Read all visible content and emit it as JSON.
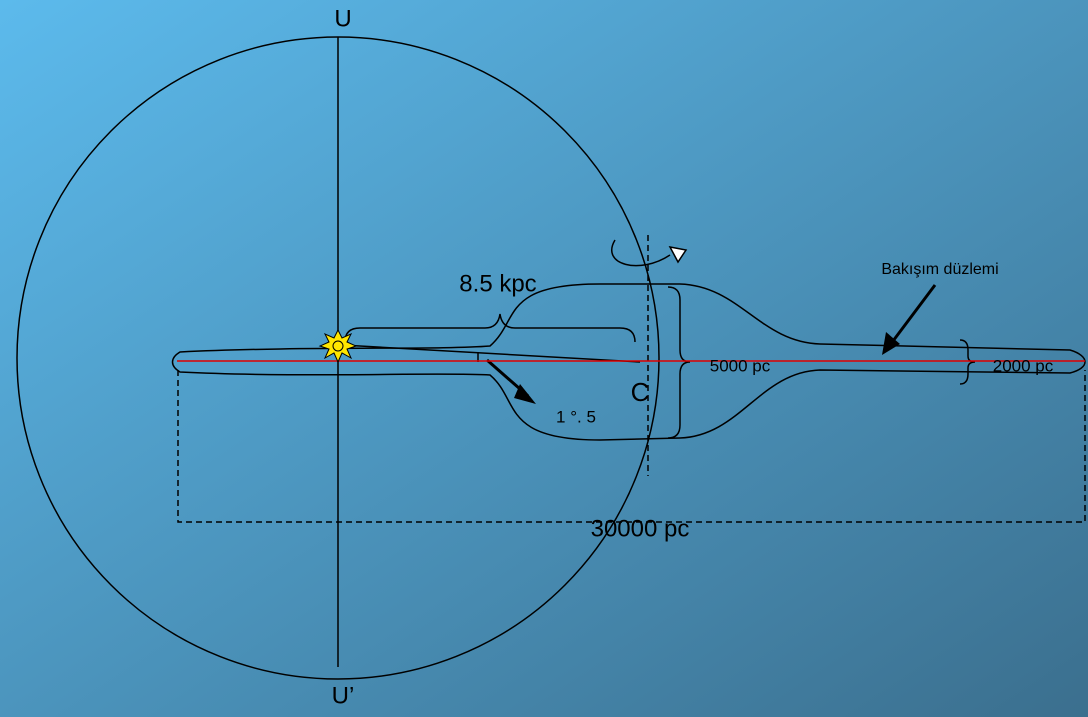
{
  "labels": {
    "top_pole": "U",
    "bottom_pole": "U’",
    "sun_distance": "8.5 kpc",
    "center": "C",
    "angle": "1 °. 5",
    "bulge_thickness": "5000 pc",
    "disk_thickness": "2000 pc",
    "plane": "Bakışım düzlemi",
    "diameter": "30000 pc"
  }
}
